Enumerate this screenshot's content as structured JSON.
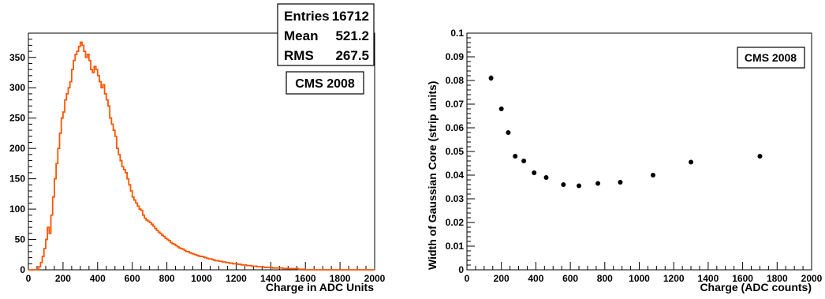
{
  "chart_data": [
    {
      "type": "histogram",
      "title": "",
      "xlabel": "Charge in ADC Units",
      "ylabel": "",
      "xlim": [
        0,
        2000
      ],
      "ylim": [
        0,
        390
      ],
      "x_ticks": [
        "0",
        "200",
        "400",
        "600",
        "800",
        "1000",
        "1200",
        "1400",
        "1600",
        "1800",
        "2000"
      ],
      "y_ticks": [
        "0",
        "50",
        "100",
        "150",
        "200",
        "250",
        "300",
        "350"
      ],
      "color": "#ff5500",
      "label": "CMS 2008",
      "stats": [
        {
          "label": "Entries",
          "value": "16712"
        },
        {
          "label": "Mean",
          "value": "521.2"
        },
        {
          "label": "RMS",
          "value": "267.5"
        }
      ],
      "bin_width": 10,
      "bins_x0": 60,
      "values": [
        5,
        12,
        22,
        35,
        50,
        70,
        60,
        90,
        120,
        150,
        175,
        200,
        225,
        250,
        260,
        280,
        290,
        300,
        310,
        330,
        345,
        355,
        360,
        368,
        375,
        370,
        360,
        350,
        355,
        345,
        330,
        325,
        335,
        330,
        320,
        310,
        300,
        305,
        290,
        280,
        270,
        250,
        240,
        230,
        220,
        200,
        190,
        180,
        170,
        165,
        160,
        150,
        140,
        130,
        120,
        115,
        110,
        105,
        100,
        98,
        90,
        85,
        82,
        80,
        78,
        75,
        72,
        68,
        65,
        62,
        60,
        57,
        55,
        52,
        50,
        48,
        45,
        43,
        42,
        40,
        38,
        36,
        35,
        34,
        32,
        30,
        30,
        28,
        27,
        26,
        25,
        24,
        23,
        22,
        22,
        21,
        20,
        19,
        18,
        18,
        17,
        16,
        15,
        15,
        14,
        14,
        13,
        13,
        12,
        12,
        11,
        11,
        10,
        10,
        10,
        9,
        9,
        8,
        8,
        8,
        7,
        7,
        7,
        6,
        6,
        6,
        5,
        5,
        5,
        5,
        4,
        4,
        4,
        4,
        4,
        3,
        3,
        3,
        3,
        3,
        3,
        2,
        2,
        2,
        2,
        2,
        2,
        2,
        2,
        2,
        1,
        1,
        1,
        1
      ]
    },
    {
      "type": "scatter",
      "title": "",
      "xlabel": "Charge (ADC counts)",
      "ylabel": "Width of Gaussian Core (strip units)",
      "xlim": [
        0,
        2000
      ],
      "ylim": [
        0,
        0.1
      ],
      "x_ticks": [
        "0",
        "200",
        "400",
        "600",
        "800",
        "1000",
        "1200",
        "1400",
        "1600",
        "1800",
        "2000"
      ],
      "y_ticks": [
        "0",
        "0.01",
        "0.02",
        "0.03",
        "0.04",
        "0.05",
        "0.06",
        "0.07",
        "0.08",
        "0.09",
        "0.1"
      ],
      "label": "CMS 2008",
      "series": [
        {
          "x": [
            140,
            200,
            240,
            280,
            330,
            390,
            460,
            560,
            650,
            760,
            890,
            1080,
            1300,
            1700
          ],
          "y": [
            0.081,
            0.068,
            0.058,
            0.048,
            0.046,
            0.041,
            0.039,
            0.036,
            0.0355,
            0.0365,
            0.037,
            0.04,
            0.0455,
            0.048
          ],
          "yerr": [
            0.0012,
            0,
            0,
            0,
            0,
            0,
            0,
            0,
            0,
            0,
            0,
            0,
            0,
            0
          ]
        }
      ]
    }
  ]
}
